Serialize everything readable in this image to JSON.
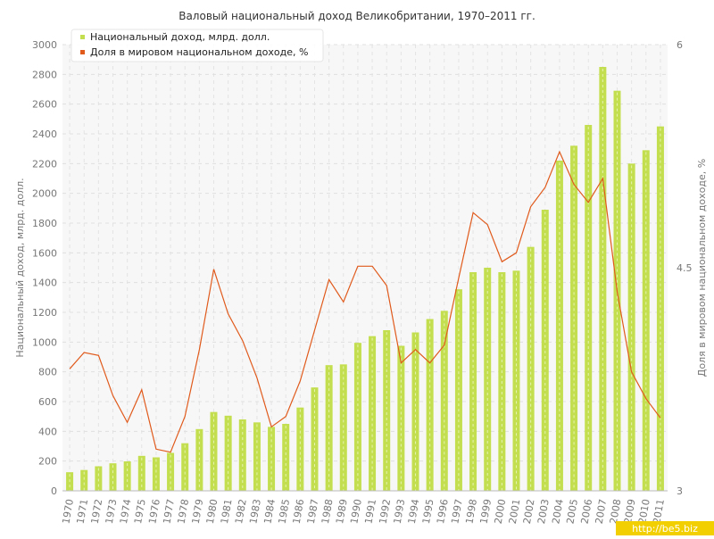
{
  "chart_data": {
    "type": "bar",
    "title": "Валовый национальный доход Великобритании, 1970–2011 гг.",
    "ylabel": "Национальный доход, млрд. долл.",
    "y2label": "Доля в мировом национальном доходе, %",
    "categories": [
      "1970",
      "1971",
      "1972",
      "1973",
      "1974",
      "1975",
      "1976",
      "1977",
      "1978",
      "1979",
      "1980",
      "1981",
      "1982",
      "1983",
      "1984",
      "1985",
      "1986",
      "1987",
      "1988",
      "1989",
      "1990",
      "1991",
      "1992",
      "1993",
      "1994",
      "1995",
      "1996",
      "1997",
      "1998",
      "1999",
      "2000",
      "2001",
      "2002",
      "2003",
      "2004",
      "2005",
      "2006",
      "2007",
      "2008",
      "2009",
      "2010",
      "2011"
    ],
    "ylim": [
      0,
      3000
    ],
    "yticks": [
      0,
      200,
      400,
      600,
      800,
      1000,
      1200,
      1400,
      1600,
      1800,
      2000,
      2200,
      2400,
      2600,
      2800,
      3000
    ],
    "y2lim": [
      3,
      6
    ],
    "y2ticks": [
      "3",
      "4.5",
      "6"
    ],
    "grid": true,
    "legend_position": "top-left",
    "series": [
      {
        "name": "Национальный доход, млрд. долл.",
        "type": "bar",
        "axis": "left",
        "color": "#c3df4f",
        "values": [
          125,
          140,
          165,
          185,
          198,
          235,
          225,
          255,
          320,
          415,
          530,
          505,
          480,
          460,
          430,
          450,
          560,
          695,
          845,
          850,
          995,
          1040,
          1080,
          975,
          1065,
          1155,
          1210,
          1355,
          1470,
          1500,
          1470,
          1480,
          1640,
          1890,
          2220,
          2320,
          2460,
          2850,
          2690,
          2200,
          2290,
          2450
        ]
      },
      {
        "name": "Доля в мировом национальном доходе, %",
        "type": "line",
        "axis": "right",
        "color": "#e05a1c",
        "values": [
          3.82,
          3.93,
          3.91,
          3.64,
          3.46,
          3.68,
          3.28,
          3.26,
          3.5,
          3.95,
          4.49,
          4.19,
          4.01,
          3.76,
          3.43,
          3.5,
          3.74,
          4.08,
          4.42,
          4.27,
          4.51,
          4.51,
          4.38,
          3.86,
          3.95,
          3.86,
          3.98,
          4.43,
          4.87,
          4.79,
          4.54,
          4.6,
          4.91,
          5.04,
          5.28,
          5.06,
          4.94,
          5.1,
          4.34,
          3.8,
          3.62,
          3.49
        ]
      }
    ]
  },
  "watermark": "http://be5.biz"
}
